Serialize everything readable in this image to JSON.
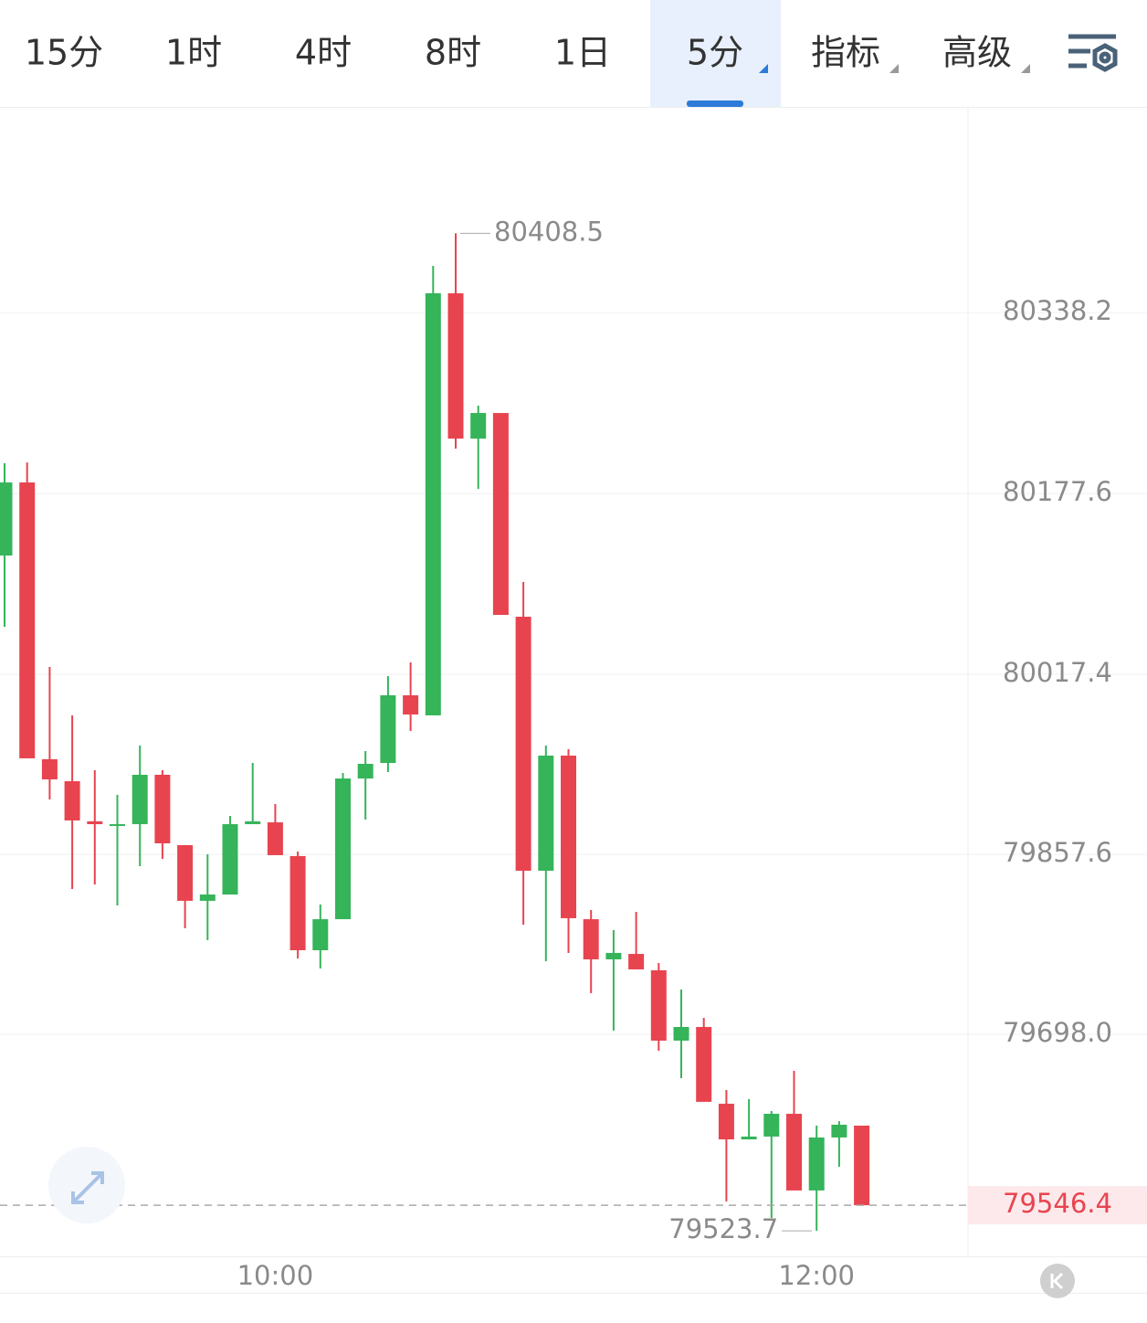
{
  "tabs": {
    "items": [
      "15分",
      "1时",
      "4时",
      "8时",
      "1日",
      "5分",
      "指标",
      "高级"
    ],
    "active": 5
  },
  "chart_data": {
    "type": "candlestick",
    "categories": [
      null,
      null,
      null,
      null,
      null,
      null,
      null,
      null,
      null,
      null,
      null,
      null,
      "10:00",
      null,
      null,
      null,
      null,
      null,
      null,
      null,
      null,
      null,
      null,
      null,
      null,
      null,
      null,
      null,
      null,
      null,
      null,
      null,
      null,
      null,
      null,
      null,
      "12:00",
      null,
      null
    ],
    "open": [
      80122.7,
      80187.5,
      79942.0,
      79922.5,
      79886.9,
      79883.6,
      79884.4,
      79928.2,
      79865.8,
      79816.4,
      79822.0,
      79884.4,
      79886.0,
      79856.1,
      79772.6,
      79800.1,
      79924.9,
      79938.7,
      79998.7,
      79980.9,
      80355.3,
      80226.4,
      80249.1,
      80068.4,
      79843.1,
      79945.2,
      79800.1,
      79764.5,
      79769.3,
      79754.8,
      79692.4,
      79704.5,
      79636.4,
      79604.8,
      79607.3,
      79627.5,
      79559.5,
      79606.5,
      79617.0
    ],
    "high": [
      80204.5,
      80205.3,
      80023.8,
      79980.9,
      79932.2,
      79910.4,
      79954.1,
      79932.2,
      79865.8,
      79857.7,
      79891.7,
      79938.7,
      79902.3,
      79860.1,
      79813.1,
      79929.8,
      79949.3,
      80015.7,
      80027.9,
      80379.6,
      80408.5,
      80255.6,
      80249.1,
      80099.2,
      79954.1,
      79950.9,
      79808.2,
      79790.4,
      79806.6,
      79761.2,
      79737.7,
      79712.6,
      79648.6,
      79640.5,
      79630.0,
      79665.6,
      79617.0,
      79621.0,
      79617.0
    ],
    "low": [
      80059.5,
      79942.8,
      79906.3,
      79826.9,
      79830.9,
      79812.3,
      79847.1,
      79853.6,
      79792.0,
      79781.5,
      79822.0,
      79884.4,
      79856.9,
      79765.3,
      79756.4,
      79800.1,
      79888.5,
      79930.6,
      79967.1,
      79980.9,
      80217.5,
      80181.8,
      80070.0,
      79795.3,
      79762.9,
      79770.2,
      79734.5,
      79701.3,
      79755.6,
      79683.4,
      79659.1,
      79638.1,
      79549.7,
      79604.8,
      79535.1,
      79559.5,
      79523.7,
      79580.5,
      79546.4
    ],
    "close": [
      80187.5,
      79942.8,
      79924.1,
      79887.7,
      79884.4,
      79884.4,
      79928.2,
      79867.4,
      79816.4,
      79822.0,
      79884.4,
      79886.9,
      79856.9,
      79772.6,
      79800.1,
      79924.9,
      79937.9,
      79998.7,
      79981.7,
      80355.3,
      80226.4,
      80249.1,
      80070.0,
      79843.1,
      79945.2,
      79801.0,
      79764.5,
      79770.2,
      79755.6,
      79692.4,
      79704.5,
      79638.1,
      79604.8,
      79607.3,
      79627.5,
      79559.5,
      79606.5,
      79617.8,
      79546.4
    ],
    "up_color": "#35b45a",
    "down_color": "#e8444f",
    "ylim": [
      79501.1,
      80519.8
    ],
    "yticks": [
      80338.2,
      80177.6,
      80017.4,
      79857.6,
      {
        "value": 79698.0,
        "label": "79698.0"
      }
    ],
    "grid": true,
    "max_label": 80408.5,
    "min_label": 79523.7,
    "last_price": 79546.4
  }
}
